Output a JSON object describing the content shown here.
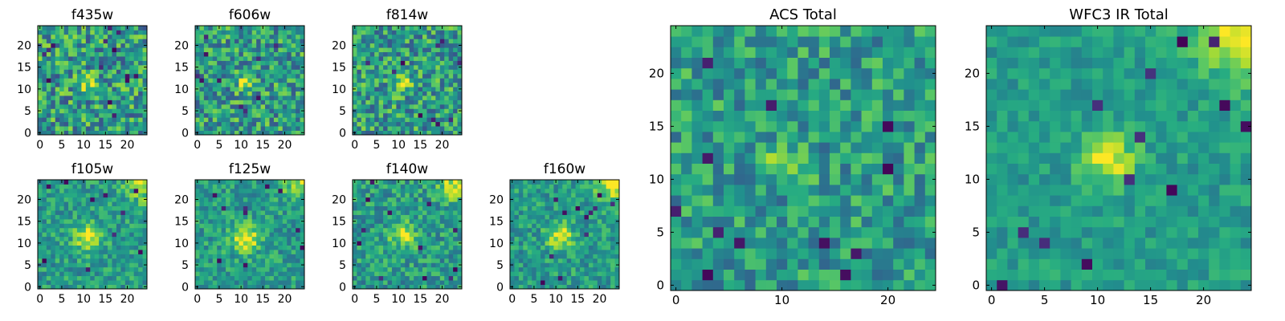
{
  "figure": {
    "background": "#ffffff"
  },
  "colormap": {
    "name": "viridis",
    "stops": [
      "#440154",
      "#472c7a",
      "#3b518b",
      "#2c718e",
      "#21908d",
      "#27ad81",
      "#5cc863",
      "#aadc32",
      "#fde725"
    ]
  },
  "chart_data": [
    {
      "type": "heatmap",
      "title": "f435w",
      "xlabel": "",
      "ylabel": "",
      "xticks": [
        0,
        5,
        10,
        15,
        20
      ],
      "yticks": [
        0,
        5,
        10,
        15,
        20
      ],
      "grid_size": 25,
      "grid": false,
      "source_center": [
        11,
        11.5
      ],
      "source_peak": 0.35,
      "source_width": 1.3,
      "noise_level": 0.3,
      "corner_peak": 0,
      "dark_pixels": 14,
      "seed": 11
    },
    {
      "type": "heatmap",
      "title": "f606w",
      "xlabel": "",
      "ylabel": "",
      "xticks": [
        0,
        5,
        10,
        15,
        20
      ],
      "yticks": [
        0,
        5,
        10,
        15,
        20
      ],
      "grid_size": 25,
      "grid": false,
      "source_center": [
        11,
        11.5
      ],
      "source_peak": 0.45,
      "source_width": 1.3,
      "noise_level": 0.28,
      "corner_peak": 0,
      "dark_pixels": 10,
      "seed": 23
    },
    {
      "type": "heatmap",
      "title": "f814w",
      "xlabel": "",
      "ylabel": "",
      "xticks": [
        0,
        5,
        10,
        15,
        20
      ],
      "yticks": [
        0,
        5,
        10,
        15,
        20
      ],
      "grid_size": 25,
      "grid": false,
      "source_center": [
        11,
        11.5
      ],
      "source_peak": 0.42,
      "source_width": 1.3,
      "noise_level": 0.28,
      "corner_peak": 0,
      "dark_pixels": 10,
      "seed": 37
    },
    {
      "type": "heatmap",
      "title": "f105w",
      "xlabel": "",
      "ylabel": "",
      "xticks": [
        0,
        5,
        10,
        15,
        20
      ],
      "yticks": [
        0,
        5,
        10,
        15,
        20
      ],
      "grid_size": 25,
      "grid": false,
      "source_center": [
        11,
        11.5
      ],
      "source_peak": 0.4,
      "source_width": 2.2,
      "noise_level": 0.18,
      "corner_peak": 0.35,
      "dark_pixels": 10,
      "seed": 41
    },
    {
      "type": "heatmap",
      "title": "f125w",
      "xlabel": "",
      "ylabel": "",
      "xticks": [
        0,
        5,
        10,
        15,
        20
      ],
      "yticks": [
        0,
        5,
        10,
        15,
        20
      ],
      "grid_size": 25,
      "grid": false,
      "source_center": [
        11,
        11
      ],
      "source_peak": 0.45,
      "source_width": 2.2,
      "noise_level": 0.18,
      "corner_peak": 0.35,
      "dark_pixels": 10,
      "seed": 53
    },
    {
      "type": "heatmap",
      "title": "f140w",
      "xlabel": "",
      "ylabel": "",
      "xticks": [
        0,
        5,
        10,
        15,
        20
      ],
      "yticks": [
        0,
        5,
        10,
        15,
        20
      ],
      "grid_size": 25,
      "grid": false,
      "source_center": [
        11,
        12
      ],
      "source_peak": 0.38,
      "source_width": 2.0,
      "noise_level": 0.2,
      "corner_peak": 0.45,
      "dark_pixels": 12,
      "seed": 67
    },
    {
      "type": "heatmap",
      "title": "f160w",
      "xlabel": "",
      "ylabel": "",
      "xticks": [
        0,
        5,
        10,
        15,
        20
      ],
      "yticks": [
        0,
        5,
        10,
        15,
        20
      ],
      "grid_size": 25,
      "grid": false,
      "source_center": [
        11,
        11.5
      ],
      "source_peak": 0.42,
      "source_width": 2.0,
      "noise_level": 0.18,
      "corner_peak": 0.5,
      "dark_pixels": 12,
      "seed": 79
    },
    {
      "type": "heatmap",
      "title": "ACS Total",
      "xlabel": "",
      "ylabel": "",
      "xticks": [
        0,
        10,
        20
      ],
      "yticks": [
        0,
        5,
        10,
        15,
        20
      ],
      "grid_size": 25,
      "grid": false,
      "source_center": [
        10.5,
        11.5
      ],
      "source_peak": 0.4,
      "source_width": 1.1,
      "noise_level": 0.22,
      "corner_peak": 0,
      "dark_pixels": 12,
      "seed": 91
    },
    {
      "type": "heatmap",
      "title": "WFC3 IR Total",
      "xlabel": "",
      "ylabel": "",
      "xticks": [
        0,
        5,
        10,
        15,
        20
      ],
      "yticks": [
        0,
        5,
        10,
        15,
        20
      ],
      "grid_size": 25,
      "grid": false,
      "source_center": [
        11,
        12
      ],
      "source_peak": 0.42,
      "source_width": 1.8,
      "noise_level": 0.12,
      "corner_peak": 0.5,
      "dark_pixels": 14,
      "seed": 103
    }
  ]
}
